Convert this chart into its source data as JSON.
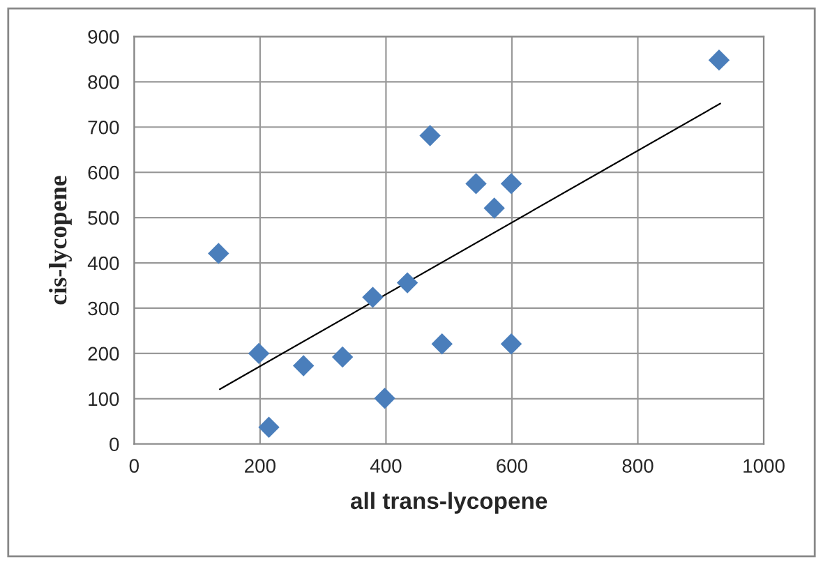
{
  "chart_data": {
    "type": "scatter",
    "xlabel": "all trans-lycopene",
    "ylabel": "cis-lycopene",
    "xlim": [
      0,
      1000
    ],
    "xticks": [
      0,
      200,
      400,
      600,
      800,
      1000
    ],
    "ylim": [
      0,
      900
    ],
    "yticks": [
      0,
      100,
      200,
      300,
      400,
      500,
      600,
      700,
      800,
      900
    ],
    "grid": true,
    "series": [
      {
        "color": "#4a7ebb",
        "marker": "diamond",
        "x": [
          134,
          198,
          214,
          269,
          331,
          379,
          398,
          434,
          470,
          489,
          543,
          572,
          599,
          599,
          929
        ],
        "values": [
          421,
          200,
          37,
          173,
          192,
          324,
          101,
          356,
          681,
          221,
          575,
          521,
          575,
          221,
          848
        ]
      },
      {
        "type": "line",
        "color": "#000000",
        "marker": "none",
        "line_style": "solid",
        "x": [
          136,
          931
        ],
        "values": [
          121,
          752
        ]
      }
    ]
  }
}
